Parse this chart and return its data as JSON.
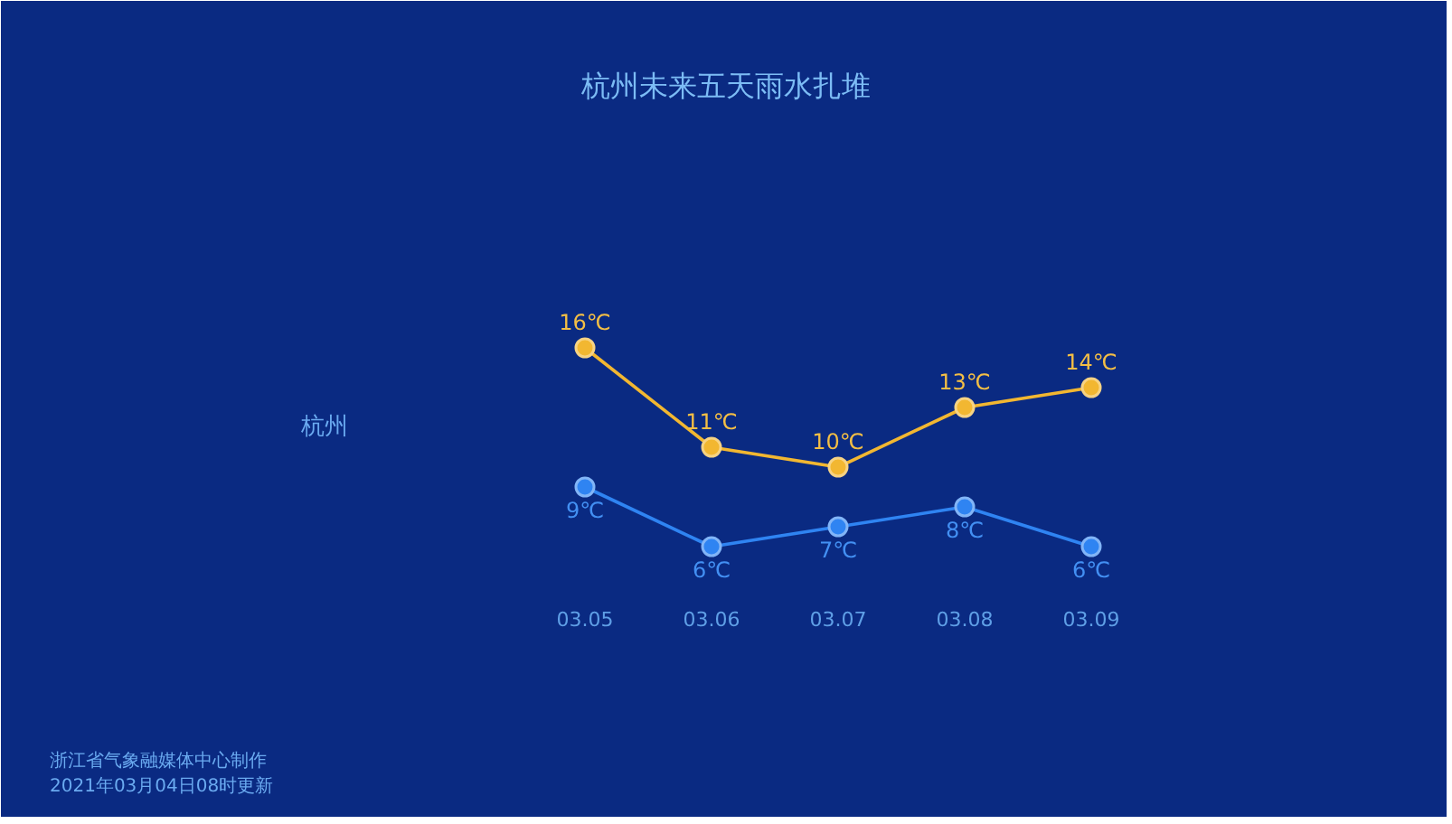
{
  "chart_data": {
    "type": "line",
    "title": "杭州未来五天雨水扎堆",
    "categories": [
      "03.05",
      "03.06",
      "03.07",
      "03.08",
      "03.09"
    ],
    "series": [
      {
        "color": "#f2b731",
        "values": [
          16,
          11,
          10,
          13,
          14
        ],
        "value_labels": [
          "16℃",
          "11℃",
          "10℃",
          "13℃",
          "14℃"
        ]
      },
      {
        "color": "#2f84f2",
        "values": [
          9,
          6,
          7,
          8,
          6
        ],
        "value_labels": [
          "9℃",
          "6℃",
          "7℃",
          "8℃",
          "6℃"
        ]
      }
    ],
    "tick_labels": "x",
    "marker": "circle",
    "grid": false,
    "annotations": [
      "杭州",
      "浙江省气象融媒体中心制作",
      "2021年03月04日08时更新"
    ]
  }
}
